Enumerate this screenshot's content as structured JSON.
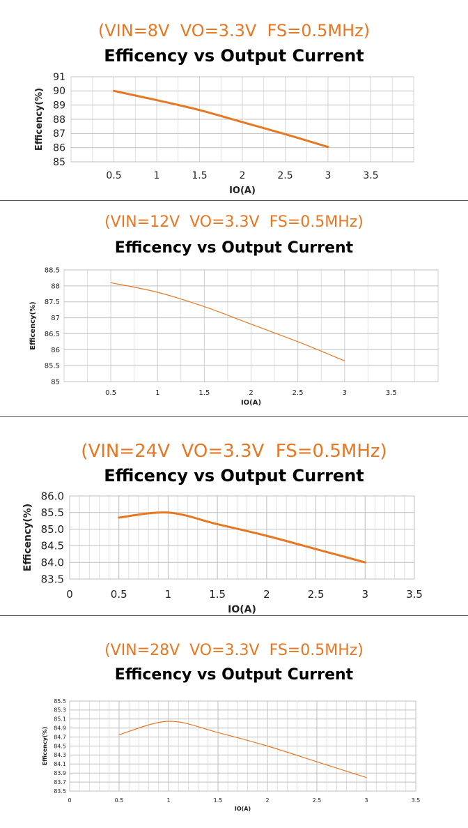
{
  "line_color": "#e87722",
  "subtitle_color": "#e87722",
  "chart_data": [
    {
      "type": "line",
      "subtitle": "(VIN=8V  VO=3.3V  FS=0.5MHz)",
      "title": "Efficency vs Output Current",
      "xlabel": "IO(A)",
      "ylabel": "Efficency(%)",
      "xlim": [
        0,
        4
      ],
      "ylim": [
        85,
        91
      ],
      "xticks": [
        "0.5",
        "1",
        "1.5",
        "2",
        "2.5",
        "3",
        "3.5"
      ],
      "yticks": [
        "85",
        "86",
        "87",
        "88",
        "89",
        "90",
        "91"
      ],
      "grid": "on",
      "series": [
        {
          "x": [
            0.5,
            1.0,
            1.5,
            2.0,
            2.5,
            3.0
          ],
          "y": [
            90.0,
            89.35,
            88.65,
            87.8,
            86.95,
            86.05
          ]
        }
      ]
    },
    {
      "type": "line",
      "subtitle": "(VIN=12V  VO=3.3V  FS=0.5MHz)",
      "title": "Efficency vs Output Current",
      "xlabel": "IO(A)",
      "ylabel": "Efficency(%)",
      "xlim": [
        0,
        4
      ],
      "ylim": [
        85,
        88.5
      ],
      "xticks": [
        "0.5",
        "1",
        "1.5",
        "2",
        "2.5",
        "3",
        "3.5"
      ],
      "yticks": [
        "85",
        "85.5",
        "86",
        "86.5",
        "87",
        "87.5",
        "88",
        "88.5"
      ],
      "grid": "on",
      "series": [
        {
          "x": [
            0.5,
            1.0,
            1.5,
            2.0,
            2.5,
            3.0
          ],
          "y": [
            88.1,
            87.8,
            87.35,
            86.8,
            86.25,
            85.65
          ]
        }
      ]
    },
    {
      "type": "line",
      "subtitle": "(VIN=24V  VO=3.3V  FS=0.5MHz)",
      "title": "Efficency vs Output Current",
      "xlabel": "IO(A)",
      "ylabel": "Efficency(%)",
      "xlim": [
        0,
        3.5
      ],
      "ylim": [
        83.5,
        86.0
      ],
      "xticks": [
        "0",
        "0.5",
        "1",
        "1.5",
        "2",
        "2.5",
        "3",
        "3.5"
      ],
      "yticks": [
        "83.5",
        "84.0",
        "84.5",
        "85.0",
        "85.5",
        "86.0"
      ],
      "grid": "on",
      "series": [
        {
          "x": [
            0.5,
            1.0,
            1.5,
            2.0,
            2.5,
            3.0
          ],
          "y": [
            85.35,
            85.5,
            85.15,
            84.8,
            84.4,
            84.0
          ]
        }
      ]
    },
    {
      "type": "line",
      "subtitle": "(VIN=28V  VO=3.3V  FS=0.5MHz)",
      "title": "Efficency vs Output Current",
      "xlabel": "IO(A)",
      "ylabel": "Efficency(%)",
      "xlim": [
        0,
        3.5
      ],
      "ylim": [
        83.5,
        85.5
      ],
      "xticks": [
        "0",
        "0.5",
        "1",
        "1.5",
        "2",
        "2.5",
        "3",
        "3.5"
      ],
      "yticks": [
        "83.5",
        "83.7",
        "83.9",
        "84.1",
        "84.3",
        "84.5",
        "84.7",
        "84.9",
        "85.1",
        "85.3",
        "85.5"
      ],
      "grid": "on",
      "series": [
        {
          "x": [
            0.5,
            1.0,
            1.5,
            2.0,
            2.5,
            3.0
          ],
          "y": [
            84.75,
            85.05,
            84.8,
            84.5,
            84.15,
            83.8
          ]
        }
      ]
    }
  ]
}
